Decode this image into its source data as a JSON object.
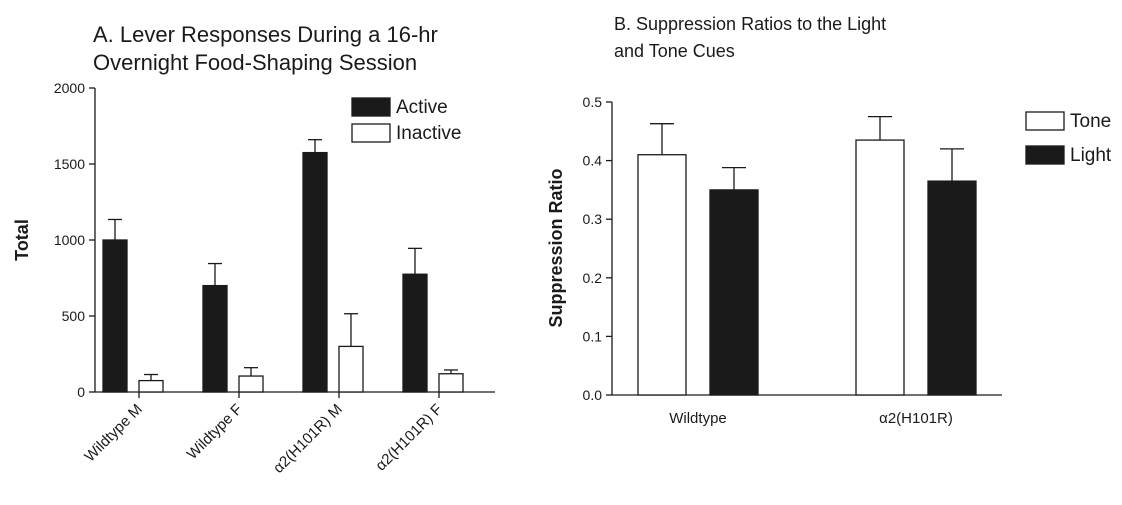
{
  "chart_data": [
    {
      "type": "bar",
      "title_lines": [
        "A. Lever Responses During a 16-hr",
        "Overnight Food-Shaping Session"
      ],
      "xlabel": "",
      "ylabel": "Total",
      "ylim": [
        0,
        2000
      ],
      "yticks": [
        "0",
        "500",
        "1000",
        "1500",
        "2000"
      ],
      "ytick_values": [
        0,
        500,
        1000,
        1500,
        2000
      ],
      "categories": [
        "Wildtype M",
        "Wildtype F",
        "α2(H101R) M",
        "α2(H101R) F"
      ],
      "series": [
        {
          "name": "Active",
          "fill": "#1a1a1a",
          "values": [
            1000,
            700,
            1575,
            775
          ],
          "errors": [
            135,
            145,
            85,
            170
          ]
        },
        {
          "name": "Inactive",
          "fill": "#ffffff",
          "values": [
            75,
            105,
            300,
            120
          ],
          "errors": [
            40,
            55,
            215,
            25
          ]
        }
      ],
      "legend_position": "top-right",
      "grid": false
    },
    {
      "type": "bar",
      "title_lines": [
        "B. Suppression Ratios to the Light",
        "and Tone Cues"
      ],
      "xlabel": "",
      "ylabel": "Suppression Ratio",
      "ylim": [
        0,
        0.5
      ],
      "yticks": [
        "0.0",
        "0.1",
        "0.2",
        "0.3",
        "0.4",
        "0.5"
      ],
      "ytick_values": [
        0,
        0.1,
        0.2,
        0.3,
        0.4,
        0.5
      ],
      "categories": [
        "Wildtype",
        "α2(H101R)"
      ],
      "series": [
        {
          "name": "Tone",
          "fill": "#ffffff",
          "values": [
            0.41,
            0.435
          ],
          "errors": [
            0.053,
            0.04
          ]
        },
        {
          "name": "Light",
          "fill": "#1a1a1a",
          "values": [
            0.35,
            0.365
          ],
          "errors": [
            0.038,
            0.055
          ]
        }
      ],
      "legend_position": "right",
      "grid": false
    }
  ]
}
